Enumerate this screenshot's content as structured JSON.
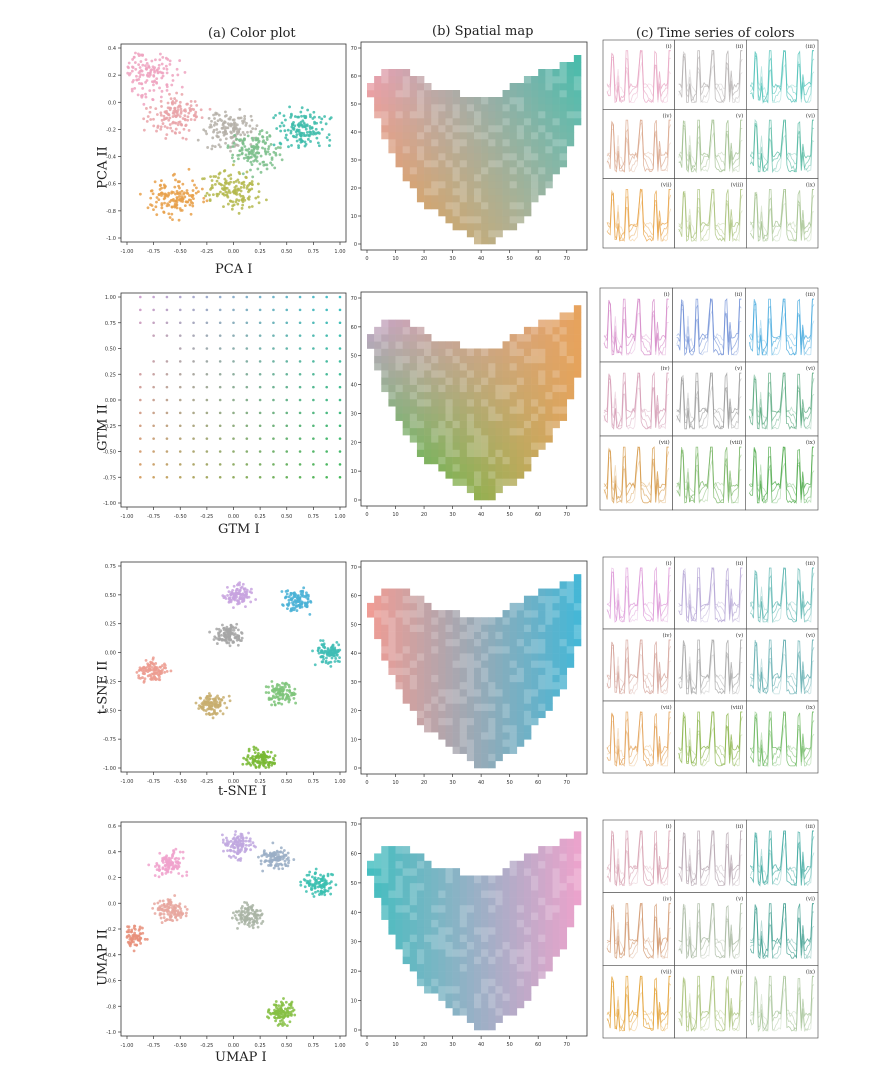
{
  "columns": {
    "a": "(a) Color plot",
    "b": "(b) Spatial map",
    "c": "(c) Time series of colors"
  },
  "rows": [
    {
      "method": "PCA",
      "ylabel": "PCA II",
      "xlabel": "PCA I",
      "x_ticks": [
        "-1.00",
        "-0.75",
        "-0.50",
        "-0.25",
        "0.00",
        "0.25",
        "0.50",
        "0.75",
        "1.00"
      ],
      "y_ticks": [
        "0.4",
        "0.2",
        "0.0",
        "-0.2",
        "-0.4",
        "-0.6",
        "-0.8",
        "-1.0"
      ]
    },
    {
      "method": "GTM",
      "ylabel": "GTM II",
      "xlabel": "GTM I",
      "x_ticks": [
        "-1.00",
        "-0.75",
        "-0.50",
        "-0.25",
        "0.00",
        "0.25",
        "0.50",
        "0.75",
        "1.00"
      ],
      "y_ticks": [
        "1.00",
        "0.75",
        "0.50",
        "0.25",
        "0.00",
        "-0.25",
        "-0.50",
        "-0.75",
        "-1.00"
      ]
    },
    {
      "method": "t-SNE",
      "ylabel": "t-SNE II",
      "xlabel": "t-SNE I",
      "x_ticks": [
        "-1.00",
        "-0.75",
        "-0.50",
        "-0.25",
        "0.00",
        "0.25",
        "0.50",
        "0.75",
        "1.00"
      ],
      "y_ticks": [
        "0.75",
        "0.50",
        "0.25",
        "0.00",
        "-0.25",
        "-0.50",
        "-0.75",
        "-1.00"
      ]
    },
    {
      "method": "UMAP",
      "ylabel": "UMAP II",
      "xlabel": "UMAP I",
      "x_ticks": [
        "-1.00",
        "-0.75",
        "-0.50",
        "-0.25",
        "0.00",
        "0.25",
        "0.50",
        "0.75",
        "1.00"
      ],
      "y_ticks": [
        "0.6",
        "0.4",
        "0.2",
        "0.0",
        "-0.2",
        "-0.4",
        "-0.6",
        "-0.8",
        "-1.0"
      ]
    }
  ],
  "spatial_map": {
    "x_ticks": [
      "0",
      "10",
      "20",
      "30",
      "40",
      "50",
      "60",
      "70"
    ],
    "y_ticks": [
      "70",
      "60",
      "50",
      "40",
      "30",
      "20",
      "10",
      "0"
    ]
  },
  "panel_labels": [
    "(i)",
    "(ii)",
    "(iii)",
    "(iv)",
    "(v)",
    "(vi)",
    "(vii)",
    "(viii)",
    "(ix)"
  ],
  "chart_data": [
    {
      "type": "scatter",
      "title": "(a) Color plot",
      "xlabel": "PCA I",
      "ylabel": "PCA II",
      "xlim": [
        -1.0,
        1.0
      ],
      "ylim": [
        -1.0,
        0.4
      ],
      "clusters": [
        {
          "color": "#eea3c0",
          "center": [
            -0.8,
            0.2
          ]
        },
        {
          "color": "#e9a3a8",
          "center": [
            -0.55,
            -0.1
          ]
        },
        {
          "color": "#e8a04a",
          "center": [
            -0.55,
            -0.7
          ]
        },
        {
          "color": "#b5b0a8",
          "center": [
            -0.05,
            -0.2
          ]
        },
        {
          "color": "#b4b84e",
          "center": [
            0.0,
            -0.65
          ]
        },
        {
          "color": "#7cc08c",
          "center": [
            0.2,
            -0.35
          ]
        },
        {
          "color": "#3dbcaa",
          "center": [
            0.65,
            -0.2
          ]
        }
      ]
    },
    {
      "type": "scatter",
      "title": "(a) Color plot",
      "xlabel": "GTM I",
      "ylabel": "GTM II",
      "xlim": [
        -1.0,
        1.0
      ],
      "ylim": [
        -1.0,
        1.0
      ],
      "grid_points": "regular lattice, spacing 0.125"
    },
    {
      "type": "scatter",
      "title": "(a) Color plot",
      "xlabel": "t-SNE I",
      "ylabel": "t-SNE II",
      "xlim": [
        -1.0,
        1.0
      ],
      "ylim": [
        -1.0,
        0.75
      ],
      "clusters": [
        {
          "color": "#c8a3df",
          "center": [
            0.05,
            0.5
          ]
        },
        {
          "color": "#4ab2d6",
          "center": [
            0.6,
            0.45
          ]
        },
        {
          "color": "#40bdb5",
          "center": [
            0.9,
            0.0
          ]
        },
        {
          "color": "#ec9c90",
          "center": [
            -0.75,
            -0.15
          ]
        },
        {
          "color": "#a6a6a6",
          "center": [
            -0.05,
            0.15
          ]
        },
        {
          "color": "#c8ae6e",
          "center": [
            -0.2,
            -0.45
          ]
        },
        {
          "color": "#7ec47a",
          "center": [
            0.45,
            -0.35
          ]
        },
        {
          "color": "#78b833",
          "center": [
            0.25,
            -0.93
          ]
        }
      ]
    },
    {
      "type": "scatter",
      "title": "(a) Color plot",
      "xlabel": "UMAP I",
      "ylabel": "UMAP II",
      "xlim": [
        -1.0,
        1.0
      ],
      "ylim": [
        -1.0,
        0.6
      ],
      "clusters": [
        {
          "color": "#f0a2cc",
          "center": [
            -0.6,
            0.3
          ]
        },
        {
          "color": "#bfa7df",
          "center": [
            0.05,
            0.45
          ]
        },
        {
          "color": "#9aaec6",
          "center": [
            0.4,
            0.35
          ]
        },
        {
          "color": "#3bbfb0",
          "center": [
            0.8,
            0.15
          ]
        },
        {
          "color": "#e7a79f",
          "center": [
            -0.6,
            -0.05
          ]
        },
        {
          "color": "#a9b4a4",
          "center": [
            0.15,
            -0.1
          ]
        },
        {
          "color": "#e8917b",
          "center": [
            -0.95,
            -0.25
          ]
        },
        {
          "color": "#86c044",
          "center": [
            0.45,
            -0.85
          ]
        }
      ]
    }
  ]
}
